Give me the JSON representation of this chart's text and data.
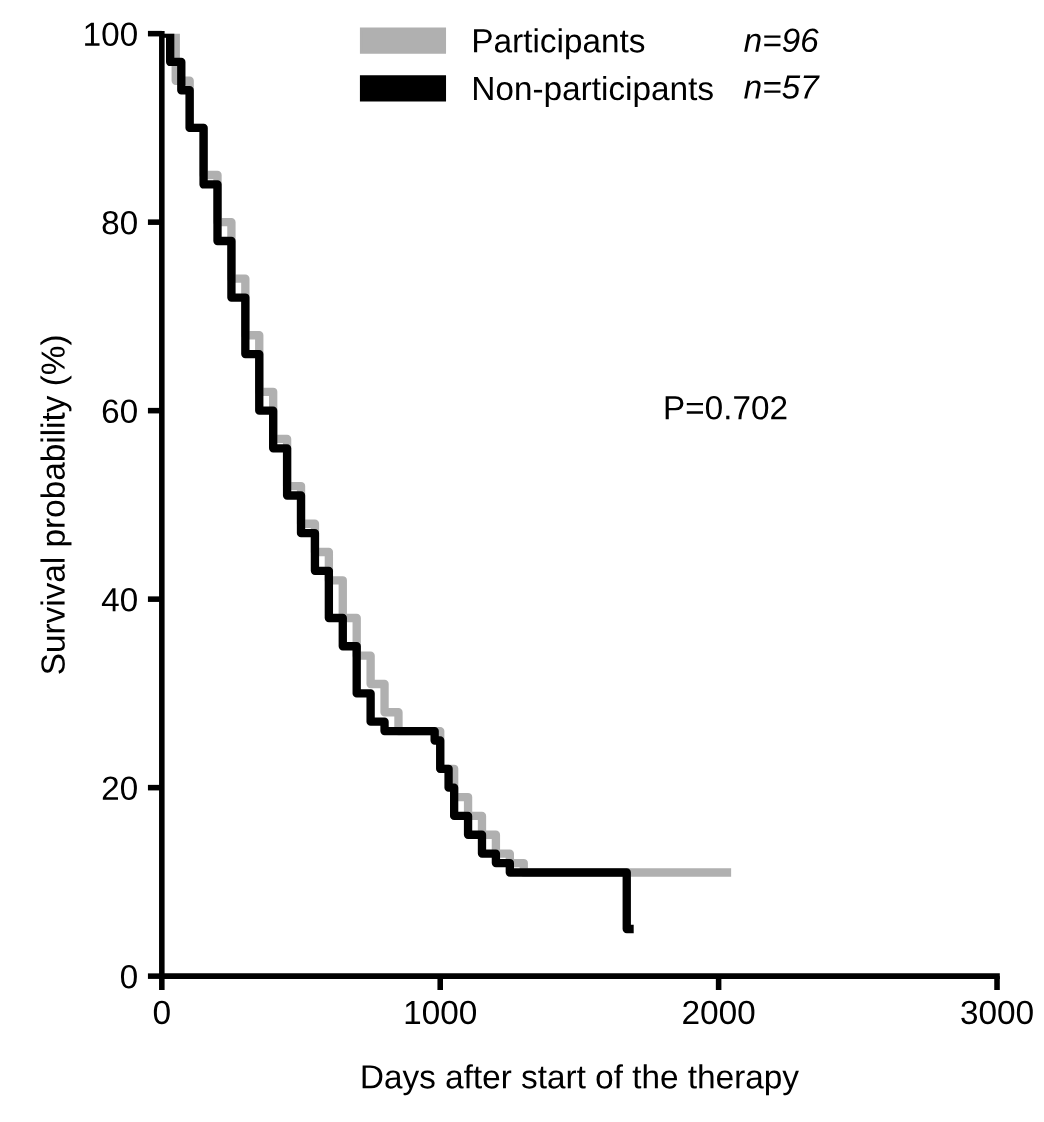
{
  "chart_data": {
    "type": "step",
    "xlabel": "Days after start of the therapy",
    "ylabel": "Survival probability (%)",
    "xlim": [
      0,
      3000
    ],
    "xticks": [
      0,
      1000,
      2000,
      3000
    ],
    "ylim": [
      0,
      100
    ],
    "yticks": [
      0,
      20,
      40,
      60,
      80,
      100
    ],
    "grid": false,
    "legend": "top",
    "line_style": "solid",
    "series": [
      {
        "name": "Participants",
        "color": "#b0b0b0",
        "x": [
          0,
          50,
          100,
          150,
          200,
          250,
          300,
          350,
          400,
          450,
          500,
          550,
          600,
          650,
          700,
          750,
          800,
          850,
          950,
          1000,
          1050,
          1100,
          1150,
          1200,
          1250,
          1300,
          1700,
          2030
        ],
        "values": [
          100,
          95,
          90,
          85,
          80,
          74,
          68,
          62,
          57,
          52,
          48,
          45,
          42,
          38,
          34,
          31,
          28,
          26,
          26,
          22,
          19,
          17,
          15,
          13,
          12,
          11,
          11,
          11
        ]
      },
      {
        "name": "Non-participants",
        "color": "#000000",
        "x": [
          0,
          30,
          70,
          100,
          150,
          200,
          250,
          300,
          350,
          400,
          450,
          500,
          550,
          600,
          650,
          700,
          750,
          800,
          950,
          980,
          1000,
          1030,
          1050,
          1100,
          1150,
          1200,
          1250,
          1300,
          1670,
          1680
        ],
        "values": [
          100,
          97,
          94,
          90,
          84,
          78,
          72,
          66,
          60,
          56,
          51,
          47,
          43,
          38,
          35,
          30,
          27,
          26,
          26,
          25,
          22,
          20,
          17,
          15,
          13,
          12,
          11,
          11,
          5,
          5
        ]
      }
    ],
    "annotations": [
      "n=96",
      "n=57",
      "P=0.702"
    ]
  }
}
